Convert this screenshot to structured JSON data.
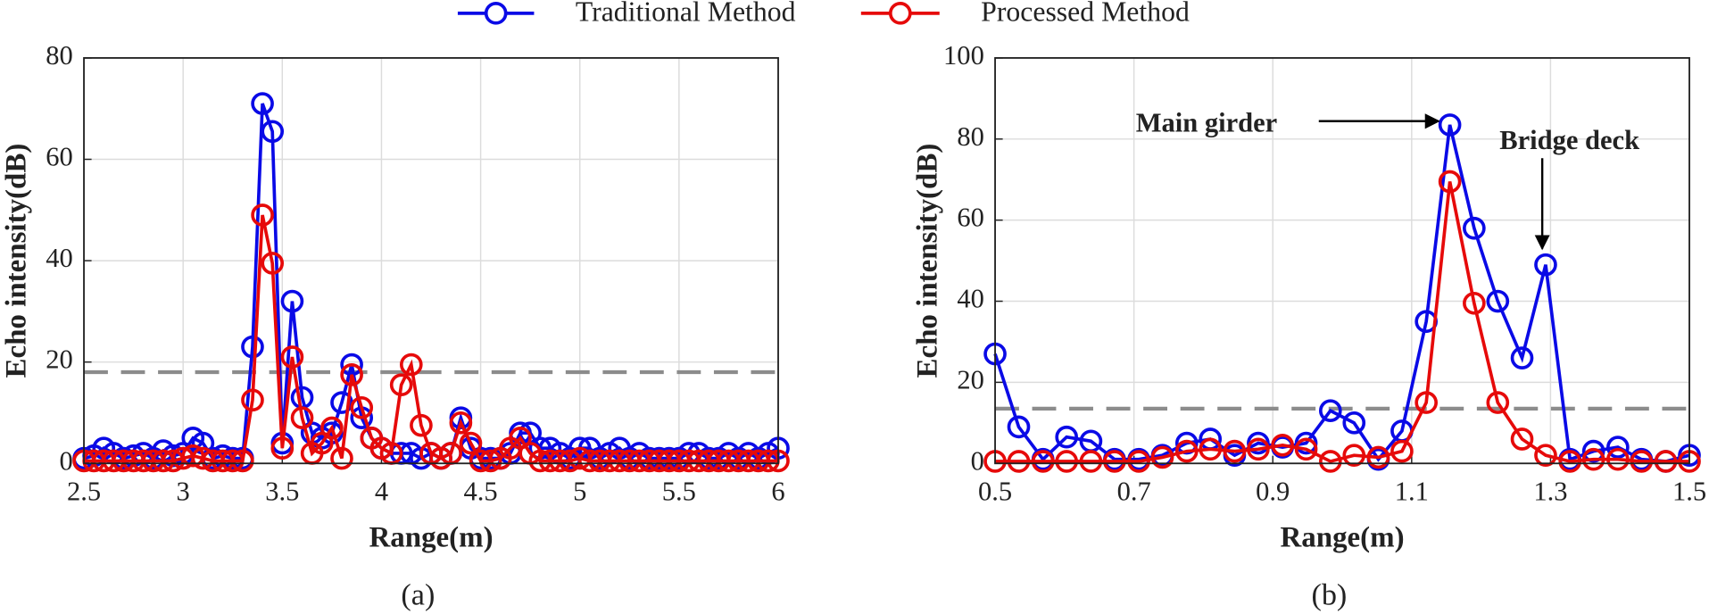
{
  "chart_data": [
    {
      "type": "line",
      "caption": "(a)",
      "x_label": "Range(m)",
      "y_label": "Echo intensity(dB)",
      "xlim": [
        2.5,
        6
      ],
      "xticks": [
        2.5,
        3,
        3.5,
        4,
        4.5,
        5,
        5.5,
        6
      ],
      "ylim": [
        0,
        80
      ],
      "yticks": [
        0,
        20,
        40,
        60,
        80
      ],
      "grid": true,
      "threshold": 18,
      "threshold_color": "#8c8c8c",
      "x": [
        2.5,
        2.55,
        2.6,
        2.65,
        2.7,
        2.75,
        2.8,
        2.85,
        2.9,
        2.95,
        3.0,
        3.05,
        3.1,
        3.15,
        3.2,
        3.25,
        3.3,
        3.35,
        3.4,
        3.45,
        3.5,
        3.55,
        3.6,
        3.65,
        3.7,
        3.75,
        3.8,
        3.85,
        3.9,
        3.95,
        4.0,
        4.05,
        4.1,
        4.15,
        4.2,
        4.25,
        4.3,
        4.35,
        4.4,
        4.45,
        4.5,
        4.55,
        4.6,
        4.65,
        4.7,
        4.75,
        4.8,
        4.85,
        4.9,
        4.95,
        5.0,
        5.05,
        5.1,
        5.15,
        5.2,
        5.25,
        5.3,
        5.35,
        5.4,
        5.45,
        5.5,
        5.55,
        5.6,
        5.65,
        5.7,
        5.75,
        5.8,
        5.85,
        5.9,
        5.95,
        6.0
      ],
      "series": [
        {
          "name": "Traditional Method",
          "color": "#0a0ae6",
          "values": [
            1,
            1.5,
            3,
            2,
            1,
            1.5,
            2,
            1,
            2.5,
            1.5,
            2,
            5,
            4,
            1,
            1.5,
            1,
            1,
            23,
            71,
            65.5,
            4,
            32,
            13,
            6,
            5,
            6,
            12,
            19.5,
            9,
            5,
            3,
            2,
            2,
            2,
            1,
            2,
            1,
            2,
            9,
            3,
            1,
            1,
            1,
            2,
            6,
            6,
            3,
            3,
            2,
            1,
            3,
            3,
            1,
            2,
            3,
            1,
            2,
            1,
            1,
            1,
            1,
            2,
            2,
            1,
            1,
            2,
            1,
            2,
            1,
            2,
            3
          ]
        },
        {
          "name": "Processed Method",
          "color": "#e60a0a",
          "values": [
            0.5,
            0.5,
            0.5,
            0.5,
            0.5,
            0.5,
            0.5,
            0.5,
            0.5,
            0.5,
            1,
            1.5,
            1,
            0.5,
            0.5,
            0.5,
            0.5,
            12.5,
            49,
            39.5,
            3,
            21,
            9,
            2,
            4,
            7,
            1,
            17.5,
            11,
            5,
            3,
            2,
            15.5,
            19.5,
            7.5,
            2,
            1,
            2,
            8,
            4,
            0.5,
            0.5,
            1,
            3,
            5,
            2,
            0.5,
            0.5,
            0.5,
            0.5,
            1,
            0.5,
            0.5,
            0.5,
            0.5,
            0.5,
            0.5,
            0.5,
            0.5,
            0.5,
            0.5,
            0.5,
            0.5,
            0.5,
            0.5,
            0.5,
            0.5,
            0.5,
            0.5,
            0.5,
            0.5
          ]
        }
      ]
    },
    {
      "type": "line",
      "caption": "(b)",
      "x_label": "Range(m)",
      "y_label": "Echo intensity(dB)",
      "xlim": [
        0.5,
        1.5
      ],
      "xticks": [
        0.5,
        0.7,
        0.9,
        1.1,
        1.3,
        1.5
      ],
      "ylim": [
        0,
        100
      ],
      "yticks": [
        0,
        20,
        40,
        60,
        80,
        100
      ],
      "grid": true,
      "threshold": 13.5,
      "threshold_color": "#8c8c8c",
      "annotations": [
        "Main girder",
        "Bridge deck"
      ],
      "x": [
        0.5,
        0.534,
        0.569,
        0.603,
        0.638,
        0.672,
        0.707,
        0.741,
        0.776,
        0.81,
        0.845,
        0.879,
        0.914,
        0.948,
        0.983,
        1.017,
        1.052,
        1.086,
        1.121,
        1.155,
        1.19,
        1.224,
        1.259,
        1.293,
        1.328,
        1.362,
        1.397,
        1.431,
        1.466,
        1.5
      ],
      "series": [
        {
          "name": "Traditional Method",
          "color": "#0a0ae6",
          "values": [
            27,
            9,
            1,
            6.5,
            5.5,
            1,
            1,
            2,
            5,
            6,
            2,
            5,
            4,
            5,
            13,
            10,
            1,
            8,
            35,
            83.5,
            58,
            40,
            26,
            49,
            1,
            3,
            4,
            1,
            0.5,
            2
          ]
        },
        {
          "name": "Processed Method",
          "color": "#e60a0a",
          "values": [
            0.5,
            0.5,
            0.5,
            0.5,
            0.5,
            0.5,
            0.5,
            1.5,
            3,
            3.5,
            3,
            3.5,
            4.5,
            3.5,
            0.5,
            2,
            1.5,
            3,
            15,
            69.5,
            39.5,
            15,
            6,
            2,
            0.5,
            1,
            1,
            0.5,
            0.5,
            0.5
          ]
        }
      ]
    }
  ]
}
